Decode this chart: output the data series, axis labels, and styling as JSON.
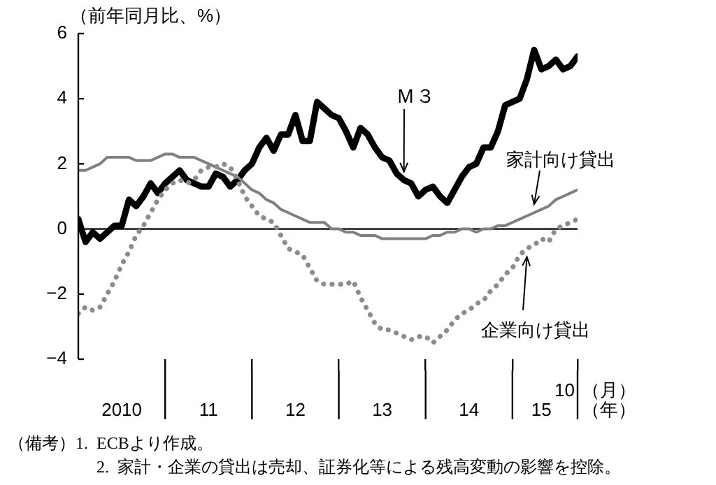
{
  "chart_data": {
    "type": "line",
    "ylabel": "（前年同月比、%）",
    "x": [
      "2010-01",
      "2010-02",
      "2010-03",
      "2010-04",
      "2010-05",
      "2010-06",
      "2010-07",
      "2010-08",
      "2010-09",
      "2010-10",
      "2010-11",
      "2010-12",
      "2011-01",
      "2011-02",
      "2011-03",
      "2011-04",
      "2011-05",
      "2011-06",
      "2011-07",
      "2011-08",
      "2011-09",
      "2011-10",
      "2011-11",
      "2011-12",
      "2012-01",
      "2012-02",
      "2012-03",
      "2012-04",
      "2012-05",
      "2012-06",
      "2012-07",
      "2012-08",
      "2012-09",
      "2012-10",
      "2012-11",
      "2012-12",
      "2013-01",
      "2013-02",
      "2013-03",
      "2013-04",
      "2013-05",
      "2013-06",
      "2013-07",
      "2013-08",
      "2013-09",
      "2013-10",
      "2013-11",
      "2013-12",
      "2014-01",
      "2014-02",
      "2014-03",
      "2014-04",
      "2014-05",
      "2014-06",
      "2014-07",
      "2014-08",
      "2014-09",
      "2014-10",
      "2014-11",
      "2014-12",
      "2015-01",
      "2015-02",
      "2015-03",
      "2015-04",
      "2015-05",
      "2015-06",
      "2015-07",
      "2015-08",
      "2015-09",
      "2015-10"
    ],
    "series": [
      {
        "name": "Ｍ３",
        "color": "#000000",
        "line_style": "solid",
        "values": [
          0.3,
          -0.4,
          -0.1,
          -0.3,
          -0.1,
          0.1,
          0.1,
          0.9,
          0.7,
          1.0,
          1.4,
          1.1,
          1.4,
          1.6,
          1.8,
          1.5,
          1.4,
          1.3,
          1.3,
          1.7,
          1.6,
          1.3,
          1.5,
          1.8,
          2.0,
          2.5,
          2.8,
          2.4,
          2.9,
          2.9,
          3.5,
          2.7,
          2.7,
          3.9,
          3.7,
          3.5,
          3.4,
          3.0,
          2.5,
          3.1,
          2.9,
          2.5,
          2.2,
          2.1,
          1.7,
          1.5,
          1.4,
          1.0,
          1.2,
          1.3,
          1.0,
          0.8,
          1.2,
          1.6,
          1.9,
          2.0,
          2.5,
          2.5,
          3.0,
          3.8,
          3.9,
          4.0,
          4.6,
          5.5,
          4.9,
          5.0,
          5.2,
          4.9,
          5.0,
          5.3
        ]
      },
      {
        "name": "家計向け貸出",
        "color": "#808080",
        "line_style": "solid",
        "values": [
          1.8,
          1.8,
          1.9,
          2.0,
          2.2,
          2.2,
          2.2,
          2.2,
          2.1,
          2.1,
          2.1,
          2.2,
          2.3,
          2.3,
          2.2,
          2.2,
          2.2,
          2.1,
          2.0,
          1.9,
          1.8,
          1.7,
          1.6,
          1.4,
          1.2,
          1.1,
          0.9,
          0.8,
          0.6,
          0.5,
          0.4,
          0.3,
          0.2,
          0.2,
          0.2,
          0.0,
          0.0,
          -0.1,
          -0.1,
          -0.2,
          -0.2,
          -0.2,
          -0.3,
          -0.3,
          -0.3,
          -0.3,
          -0.3,
          -0.3,
          -0.3,
          -0.2,
          -0.2,
          -0.1,
          -0.1,
          0.0,
          0.0,
          -0.1,
          0.0,
          0.0,
          0.1,
          0.1,
          0.2,
          0.3,
          0.4,
          0.5,
          0.6,
          0.7,
          0.9,
          1.0,
          1.1,
          1.2
        ]
      },
      {
        "name": "企業向け貸出",
        "color": "#8c8c8c",
        "line_style": "dotted",
        "values": [
          -2.6,
          -2.4,
          -2.5,
          -2.4,
          -2.0,
          -1.6,
          -1.1,
          -0.7,
          -0.2,
          0.1,
          0.5,
          0.9,
          1.2,
          1.4,
          1.5,
          1.4,
          1.5,
          1.8,
          1.9,
          1.9,
          2.0,
          1.9,
          1.5,
          1.0,
          0.7,
          0.4,
          0.3,
          0.2,
          -0.2,
          -0.6,
          -0.7,
          -0.8,
          -1.2,
          -1.6,
          -1.7,
          -1.7,
          -1.7,
          -1.7,
          -1.6,
          -2.1,
          -2.5,
          -2.9,
          -3.1,
          -3.1,
          -3.2,
          -3.3,
          -3.4,
          -3.3,
          -3.3,
          -3.5,
          -3.3,
          -3.1,
          -2.8,
          -2.6,
          -2.5,
          -2.3,
          -2.2,
          -1.9,
          -1.7,
          -1.4,
          -1.2,
          -0.8,
          -0.6,
          -0.5,
          -0.3,
          -0.4,
          0.0,
          0.1,
          0.2,
          0.3
        ]
      }
    ],
    "xlim": [
      "2010-01",
      "2015-10"
    ],
    "xticks": [
      {
        "value": "2010-07",
        "label": "2010"
      },
      {
        "value": "2011-01",
        "label": null
      },
      {
        "value": "2011-07",
        "label": "11"
      },
      {
        "value": "2012-01",
        "label": null
      },
      {
        "value": "2012-07",
        "label": "12"
      },
      {
        "value": "2013-01",
        "label": null
      },
      {
        "value": "2013-07",
        "label": "13"
      },
      {
        "value": "2014-01",
        "label": null
      },
      {
        "value": "2014-07",
        "label": "14"
      },
      {
        "value": "2015-01",
        "label": null
      },
      {
        "value": "2015-05",
        "label": "15"
      },
      {
        "value": "2015-10",
        "label": null
      }
    ],
    "ylim": [
      -4,
      6
    ],
    "yticks": [
      -4,
      -2,
      0,
      2,
      4,
      6
    ],
    "ref_lines": [
      {
        "axis": "y",
        "value": 0,
        "color": "#000000"
      }
    ],
    "grid": false,
    "legend": false,
    "marker": "none",
    "annotations": [
      "10",
      "（月）",
      "（年）",
      "（備考）1.  ECBより作成。",
      "2.  家計・企業の貸出は売却、証券化等による残高変動の影響を控除。"
    ]
  }
}
